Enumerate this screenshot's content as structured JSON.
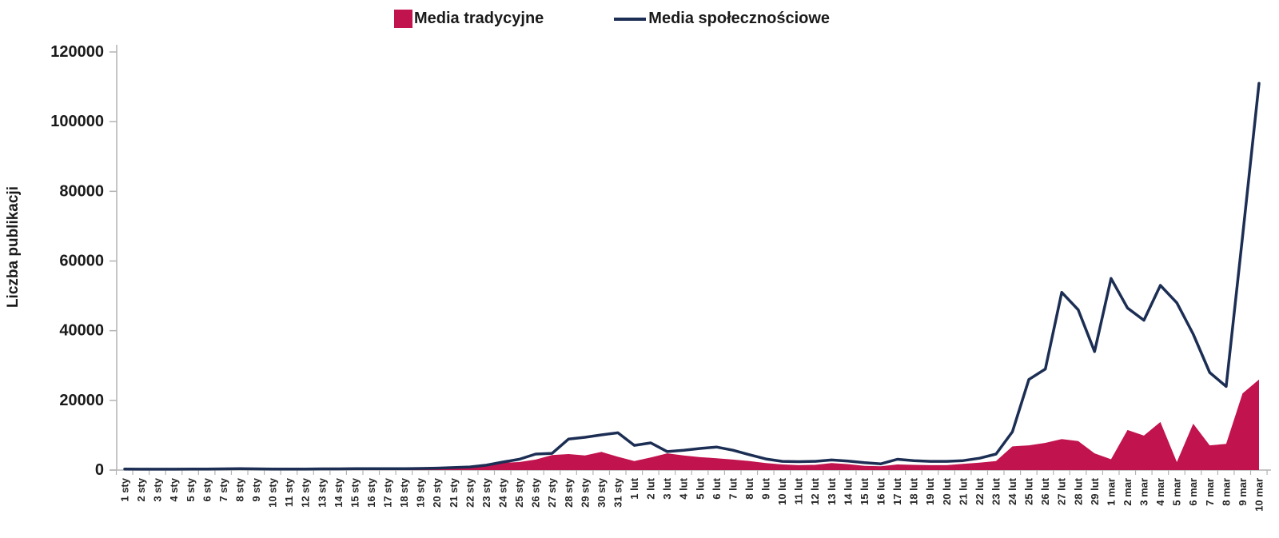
{
  "legend": {
    "items": [
      {
        "label": "Media tradycyjne",
        "marker": "square"
      },
      {
        "label": "Media społecznościowe",
        "marker": "line"
      }
    ]
  },
  "y_axis_title": "Liczba publikacji",
  "chart_data": {
    "type": "area",
    "title": "",
    "xlabel": "",
    "ylabel": "Liczba publikacji",
    "ylim": [
      0,
      120000
    ],
    "y_ticks": [
      0,
      20000,
      40000,
      60000,
      80000,
      100000,
      120000
    ],
    "grid": false,
    "legend_position": "top",
    "axis_color": "#b3b3b3",
    "categories": [
      "1 sty",
      "2 sty",
      "3 sty",
      "4 sty",
      "5 sty",
      "6 sty",
      "7 sty",
      "8 sty",
      "9 sty",
      "10 sty",
      "11 sty",
      "12 sty",
      "13 sty",
      "14 sty",
      "15 sty",
      "16 sty",
      "17 sty",
      "18 sty",
      "19 sty",
      "20 sty",
      "21 sty",
      "22 sty",
      "23 sty",
      "24 sty",
      "25 sty",
      "26 sty",
      "27 sty",
      "28 sty",
      "29 sty",
      "30 sty",
      "31 sty",
      "1 lut",
      "2 lut",
      "3 lut",
      "4 lut",
      "5 lut",
      "6 lut",
      "7 lut",
      "8 lut",
      "9 lut",
      "10 lut",
      "11 lut",
      "12 lut",
      "13 lut",
      "14 lut",
      "15 lut",
      "16 lut",
      "17 lut",
      "18 lut",
      "19 lut",
      "20 lut",
      "21 lut",
      "22 lut",
      "23 lut",
      "24 lut",
      "25 lut",
      "26 lut",
      "27 lut",
      "28 lut",
      "29 lut",
      "1 mar",
      "2 mar",
      "3 mar",
      "4 mar",
      "5 mar",
      "6 mar",
      "7 mar",
      "8 mar",
      "9 mar",
      "10 mar"
    ],
    "series": [
      {
        "name": "Media tradycyjne",
        "type": "area",
        "color": "#C1134E",
        "values": [
          100,
          100,
          100,
          100,
          100,
          100,
          150,
          150,
          150,
          100,
          100,
          100,
          150,
          150,
          150,
          150,
          150,
          200,
          250,
          300,
          400,
          600,
          1400,
          2100,
          2300,
          3000,
          4300,
          4600,
          4200,
          5200,
          3800,
          2600,
          3600,
          4800,
          4200,
          3700,
          3400,
          3000,
          2600,
          2000,
          1600,
          1400,
          1500,
          2000,
          1700,
          1200,
          1100,
          1600,
          1500,
          1400,
          1400,
          1800,
          2100,
          2600,
          6800,
          7100,
          7800,
          8900,
          8300,
          4800,
          3100,
          11500,
          9900,
          13800,
          2300,
          13300,
          7100,
          7500,
          22000,
          26000
        ]
      },
      {
        "name": "Media społecznościowe",
        "type": "line",
        "color": "#1C2E54",
        "values": [
          300,
          250,
          250,
          250,
          300,
          300,
          350,
          400,
          350,
          300,
          300,
          300,
          350,
          350,
          400,
          400,
          400,
          400,
          450,
          550,
          700,
          900,
          1400,
          2300,
          3100,
          4600,
          4800,
          8900,
          9400,
          10100,
          10700,
          7100,
          7800,
          5300,
          5700,
          6200,
          6600,
          5700,
          4400,
          3200,
          2500,
          2400,
          2500,
          2900,
          2600,
          2100,
          1800,
          3100,
          2700,
          2500,
          2500,
          2700,
          3400,
          4600,
          11000,
          26000,
          29000,
          51000,
          46000,
          34000,
          55000,
          46500,
          43000,
          53000,
          48000,
          39000,
          28000,
          24000,
          67000,
          111000
        ]
      }
    ]
  }
}
